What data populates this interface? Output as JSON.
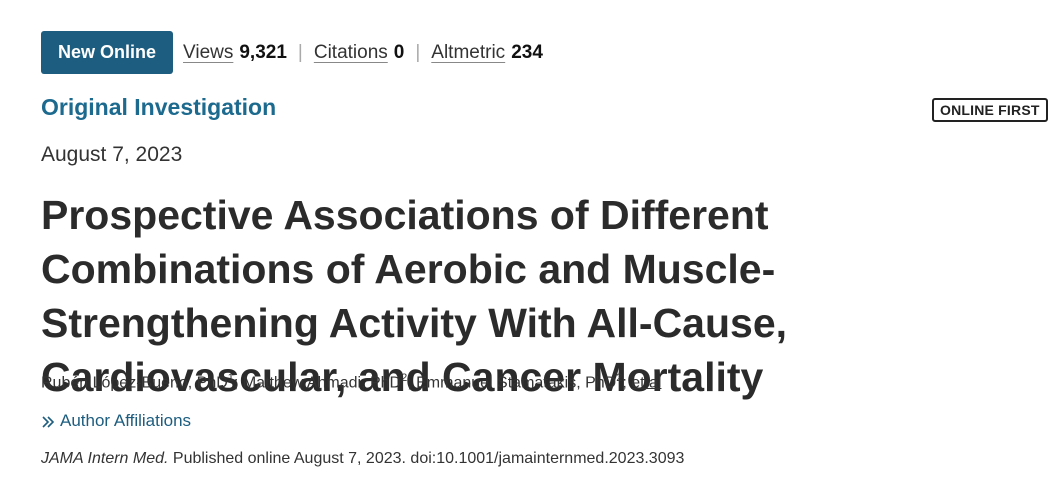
{
  "header": {
    "badge_label": "New Online",
    "metrics": [
      {
        "label": "Views",
        "value": "9,321"
      },
      {
        "label": "Citations",
        "value": "0"
      },
      {
        "label": "Altmetric",
        "value": "234"
      }
    ],
    "separator": "|"
  },
  "article": {
    "type": "Original Investigation",
    "status_tag": "ONLINE FIRST",
    "date": "August 7, 2023",
    "title": "Prospective Associations of Different Combinations of Aerobic and Muscle-Strengthening Activity With All-Cause, Cardiovascular, and Cancer Mortality"
  },
  "authors": {
    "list": [
      {
        "name": "Rubén López-Bueno, PhD",
        "sup": "1",
        "sep": "; "
      },
      {
        "name": "Matthew Ahmadi, PhD",
        "sup": "2",
        "sep": "; "
      },
      {
        "name": "Emmanuel Stamatakis, PhD",
        "sup": "2",
        "sep": "; "
      }
    ],
    "et_al": "et al",
    "affiliations_label": "Author Affiliations"
  },
  "citation": {
    "journal": "JAMA Intern Med.",
    "details": " Published online August 7, 2023. doi:10.1001/jamainternmed.2023.3093"
  },
  "colors": {
    "accent": "#1d5d7f",
    "link": "#1d6a8f",
    "title": "#2b2b2b"
  },
  "icons": {
    "affiliations_toggle": "chevron-double-right-icon"
  }
}
